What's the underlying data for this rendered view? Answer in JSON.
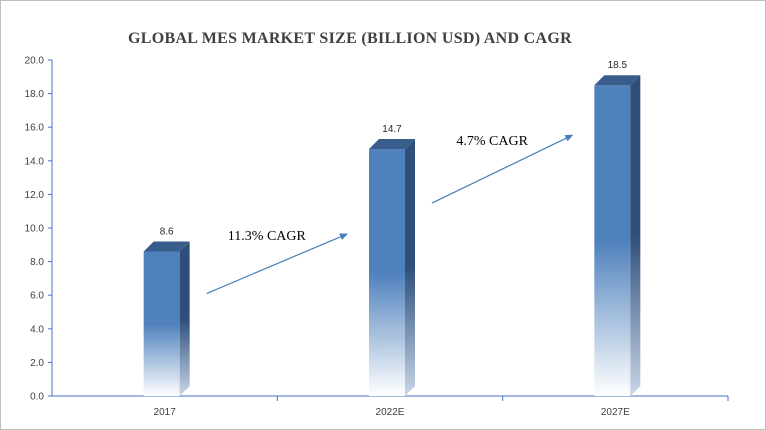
{
  "chart_data": {
    "type": "bar",
    "title": "GLOBAL MES MARKET SIZE  (BILLION USD) AND CAGR",
    "xlabel": "",
    "ylabel": "",
    "categories": [
      "2017",
      "2022E",
      "2027E"
    ],
    "values": [
      8.6,
      14.7,
      18.5
    ],
    "data_labels": [
      "8.6",
      "14.7",
      "18.5"
    ],
    "ylim": [
      0,
      20
    ],
    "yticks": [
      "0.0",
      "2.0",
      "4.0",
      "6.0",
      "8.0",
      "10.0",
      "12.0",
      "14.0",
      "16.0",
      "18.0",
      "20.0"
    ],
    "grid": false,
    "annotations": [
      {
        "text": "11.3% CAGR",
        "from": "2017",
        "to": "2022E"
      },
      {
        "text": "4.7% CAGR",
        "from": "2022E",
        "to": "2027E"
      }
    ],
    "colors": {
      "bar_front": "#4f81bd",
      "bar_side": "#2f4f7a",
      "bar_top": "#385d8a",
      "arrow": "#4a7ebb",
      "axis": "#4472c4"
    }
  }
}
